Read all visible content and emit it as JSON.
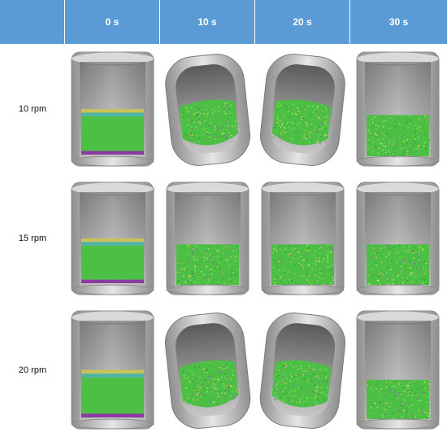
{
  "header": {
    "corner_label": "",
    "times": [
      "0 s",
      "10 s",
      "20 s",
      "30 s"
    ]
  },
  "rows": [
    {
      "label": "10 rpm",
      "states": [
        "upright-layered",
        "tilted-mixed",
        "tilted-mixed",
        "upright-mixed"
      ]
    },
    {
      "label": "15 rpm",
      "states": [
        "upright-layered",
        "upright-mixed",
        "upright-mixed",
        "upright-mixed"
      ]
    },
    {
      "label": "20 rpm",
      "states": [
        "upright-layered",
        "tilted-mixed",
        "tilted-mixed",
        "upright-mixed"
      ]
    }
  ],
  "colors": {
    "header_bg": "#5b9bd5",
    "header_text": "#ffffff",
    "powder_green": "#4cbf45",
    "layer_yellow": "#c9c25a",
    "layer_teal": "#4fb3a8",
    "layer_purple": "#8a3aa0",
    "vessel_gray": "#bdbdbd"
  }
}
